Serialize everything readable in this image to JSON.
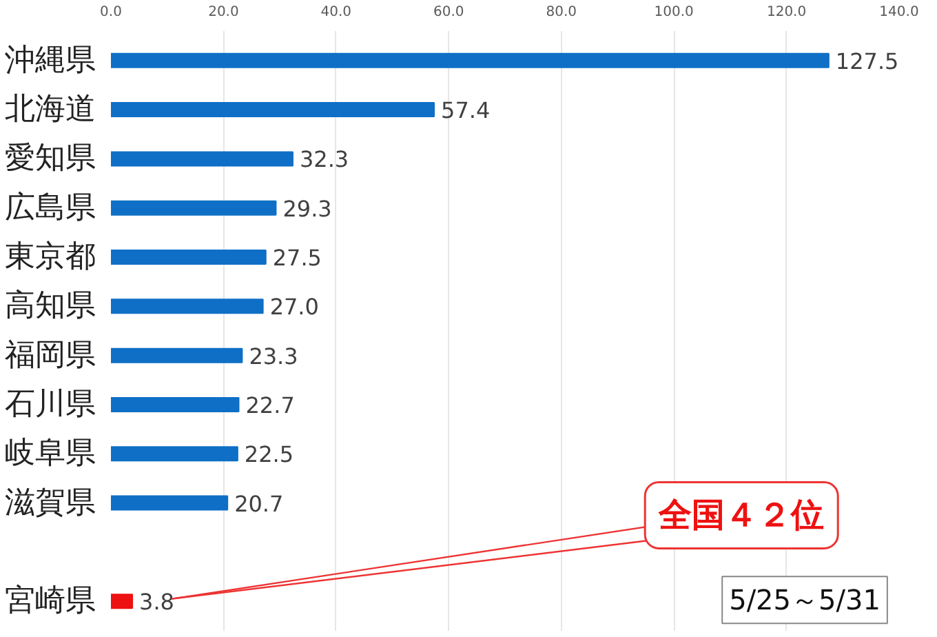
{
  "chart_data": {
    "type": "bar",
    "orientation": "horizontal",
    "categories": [
      "沖縄県",
      "北海道",
      "愛知県",
      "広島県",
      "東京都",
      "高知県",
      "福岡県",
      "石川県",
      "岐阜県",
      "滋賀県",
      null,
      "宮崎県"
    ],
    "values": [
      127.5,
      57.4,
      32.3,
      29.3,
      27.5,
      27.0,
      23.3,
      22.7,
      22.5,
      20.7,
      null,
      3.8
    ],
    "value_labels": [
      "127.5",
      "57.4",
      "32.3",
      "29.3",
      "27.5",
      "27.0",
      "23.3",
      "22.7",
      "22.5",
      "20.7",
      null,
      "3.8"
    ],
    "colors": [
      "#0f6fc6",
      "#0f6fc6",
      "#0f6fc6",
      "#0f6fc6",
      "#0f6fc6",
      "#0f6fc6",
      "#0f6fc6",
      "#0f6fc6",
      "#0f6fc6",
      "#0f6fc6",
      "#0f6fc6",
      "#ee1111"
    ],
    "xlim": [
      0,
      140
    ],
    "xticks": [
      {
        "value": 0,
        "label": "0.0"
      },
      {
        "value": 20,
        "label": "20.0"
      },
      {
        "value": 40,
        "label": "40.0"
      },
      {
        "value": 60,
        "label": "60.0"
      },
      {
        "value": 80,
        "label": "80.0"
      },
      {
        "value": 100,
        "label": "100.0"
      },
      {
        "value": 120,
        "label": "120.0"
      },
      {
        "value": 140,
        "label": "140.0"
      }
    ],
    "grid": "x",
    "annotations": [
      "全国４２位",
      "5/25～5/31"
    ]
  }
}
